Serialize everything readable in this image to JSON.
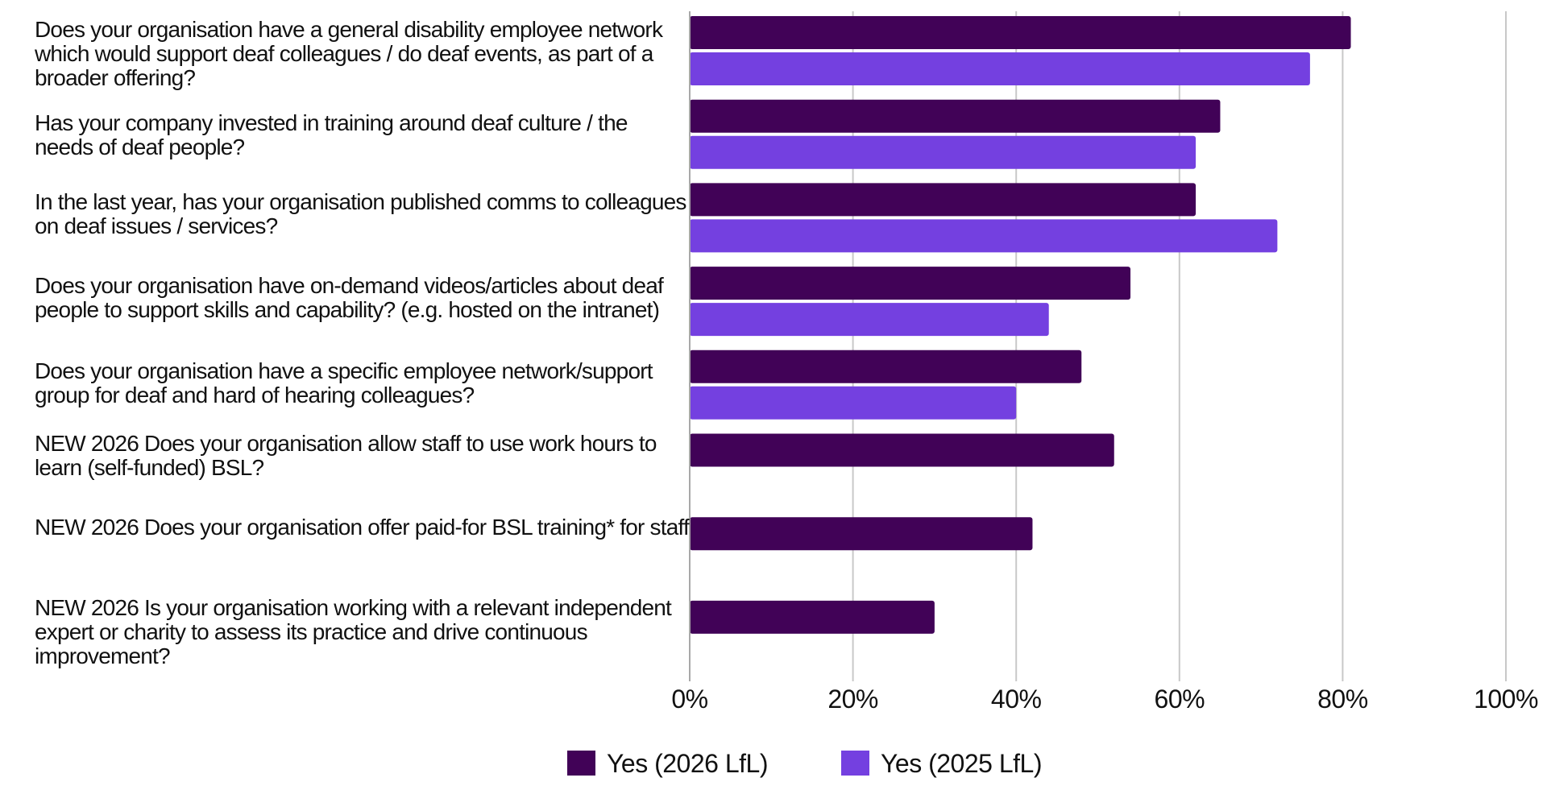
{
  "chart_data": {
    "type": "bar",
    "orientation": "horizontal",
    "categories": [
      "Does your organisation have a general disability employee network which would support deaf colleagues / do deaf events, as part of a broader offering?",
      "Has your company invested in training around deaf culture / the needs of deaf people?",
      "In the last year, has your organisation published comms to colleagues on deaf issues / services?",
      "Does your organisation have on-demand videos/articles about deaf people to support skills and capability? (e.g. hosted on the intranet)",
      "Does your organisation have a specific employee network/support group for deaf and hard of hearing colleagues?",
      "NEW 2026 Does your organisation allow staff to use work hours to learn (self-funded) BSL?",
      "NEW 2026 Does your organisation offer paid-for BSL training* for staff",
      "NEW 2026 Is your organisation working with a relevant independent expert or charity to assess its practice and drive continuous improvement?"
    ],
    "series": [
      {
        "name": "Yes (2026 LfL)",
        "color": "#410257",
        "values": [
          81,
          65,
          62,
          54,
          48,
          52,
          42,
          30
        ]
      },
      {
        "name": "Yes (2025 LfL)",
        "color": "#7440e0",
        "values": [
          76,
          62,
          72,
          44,
          40,
          null,
          null,
          null
        ]
      }
    ],
    "xlim": [
      0,
      100
    ],
    "xticks": [
      0,
      20,
      40,
      60,
      80,
      100
    ],
    "tick_labels": [
      "0%",
      "20%",
      "40%",
      "60%",
      "80%",
      "100%"
    ],
    "grid": "vertical",
    "legend": "bottom-center",
    "title": "",
    "xlabel": "",
    "ylabel": ""
  }
}
